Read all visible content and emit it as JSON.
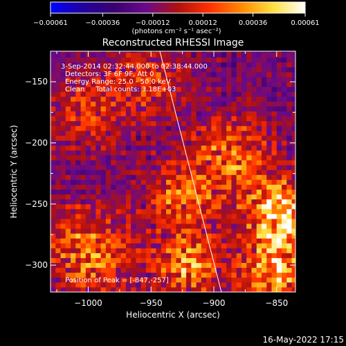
{
  "chart_data": {
    "type": "heatmap",
    "title": "Reconstructed RHESSI Image",
    "xlabel": "Heliocentric X (arcsec)",
    "ylabel": "Heliocentric Y (arcsec)",
    "xlim": [
      -1030,
      -835
    ],
    "ylim": [
      -322,
      -125
    ],
    "x_ticks": [
      -1000,
      -950,
      -900,
      -850
    ],
    "y_ticks": [
      -300,
      -250,
      -200,
      -150
    ],
    "x_tick_labels": [
      "−1000",
      "−950",
      "−900",
      "−850"
    ],
    "y_tick_labels": [
      "−300",
      "−250",
      "−200",
      "−150"
    ],
    "colorbar": {
      "min": -0.00061,
      "max": 0.00061,
      "ticks": [
        -0.00061,
        -0.00036,
        -0.00012,
        0.00012,
        0.00036,
        0.00061
      ],
      "tick_labels": [
        "−0.00061",
        "−0.00036",
        "−0.00012",
        "0.00012",
        "0.00036",
        "0.00061"
      ],
      "unit_label": "(photons cm⁻² s⁻¹ asec⁻²)",
      "colormap": [
        "#0000ff",
        "#2000a0",
        "#3a0070",
        "#6a0a8a",
        "#b01010",
        "#ff3000",
        "#ff8a00",
        "#ffe040",
        "#ffffff"
      ]
    },
    "annotations": [
      "3-Sep-2014 02:32:44.000 to 02:38:44.000",
      "Detectors: 3F 6F 9F, Att 0",
      "Energy Range: 25.0 - 50.0 keV",
      "Clean     Total counts: 3.18E+03"
    ],
    "peak_label": "Position of Peak = [-847,-257]",
    "peak_position": [
      -847,
      -257
    ],
    "limb_line": [
      [
        -943,
        -125
      ],
      [
        -894,
        -322
      ]
    ],
    "bright_regions": [
      {
        "x": -847,
        "y": -257,
        "sigma": 18,
        "amp": 1.0
      },
      {
        "x": -852,
        "y": -305,
        "sigma": 18,
        "amp": 0.8
      },
      {
        "x": -885,
        "y": -210,
        "sigma": 22,
        "amp": 0.55
      },
      {
        "x": -1000,
        "y": -290,
        "sigma": 24,
        "amp": 0.6
      },
      {
        "x": -920,
        "y": -300,
        "sigma": 18,
        "amp": 0.65
      },
      {
        "x": -925,
        "y": -245,
        "sigma": 20,
        "amp": 0.5
      },
      {
        "x": -1000,
        "y": -175,
        "sigma": 22,
        "amp": 0.35
      },
      {
        "x": -950,
        "y": -150,
        "sigma": 20,
        "amp": 0.35
      }
    ]
  },
  "footer": {
    "date_stamp": "16-May-2022 17:15"
  }
}
